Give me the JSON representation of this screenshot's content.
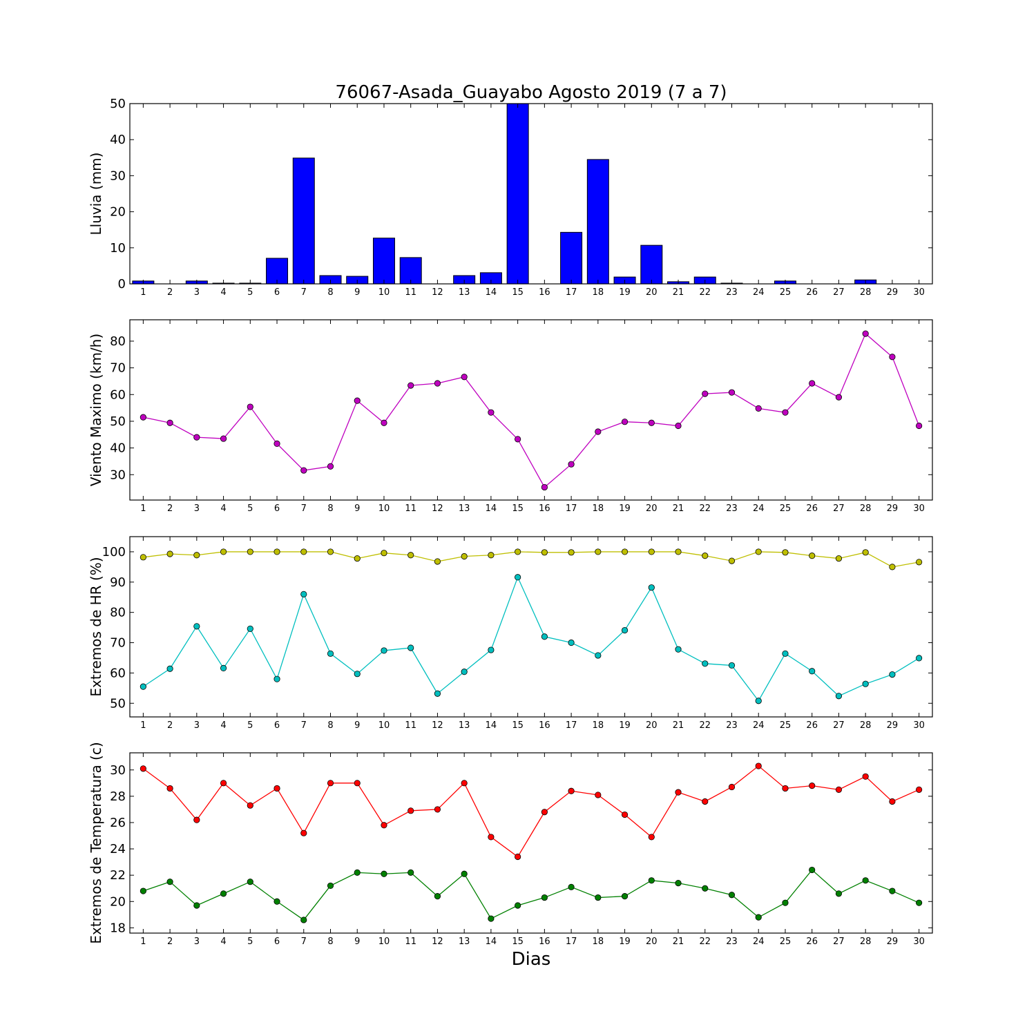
{
  "title": "76067-Asada_Guayabo Agosto 2019  (7 a 7)",
  "xlabel": "Dias",
  "chart_data": [
    {
      "type": "bar",
      "ylabel": "Lluvia (mm)",
      "x": [
        1,
        2,
        3,
        4,
        5,
        6,
        7,
        8,
        9,
        10,
        11,
        12,
        13,
        14,
        15,
        16,
        17,
        18,
        19,
        20,
        21,
        22,
        23,
        24,
        25,
        26,
        27,
        28,
        29,
        30
      ],
      "values": [
        0.8,
        0.0,
        0.8,
        0.2,
        0.2,
        7.1,
        34.9,
        2.3,
        2.1,
        12.7,
        7.3,
        0.0,
        2.3,
        3.1,
        50.0,
        0.0,
        14.3,
        34.5,
        1.9,
        10.7,
        0.6,
        1.9,
        0.2,
        0.0,
        0.8,
        0.0,
        0.0,
        1.1,
        0.0,
        0.0
      ],
      "ylim": [
        0,
        50
      ],
      "yticks": [
        0,
        10,
        20,
        30,
        40,
        50
      ],
      "color": "#0000ff"
    },
    {
      "type": "line",
      "ylabel": "Viento Maximo (km/h)",
      "x": [
        1,
        2,
        3,
        4,
        5,
        6,
        7,
        8,
        9,
        10,
        11,
        12,
        13,
        14,
        15,
        16,
        17,
        18,
        19,
        20,
        21,
        22,
        23,
        24,
        25,
        26,
        27,
        28,
        29,
        30
      ],
      "series": [
        {
          "color": "#bf00bf",
          "values": [
            51.5,
            49.4,
            44.0,
            43.5,
            55.4,
            41.6,
            31.6,
            33.1,
            57.7,
            49.4,
            63.4,
            64.2,
            66.6,
            53.3,
            43.3,
            25.3,
            33.9,
            46.1,
            49.8,
            49.4,
            48.3,
            60.3,
            60.8,
            54.8,
            53.3,
            64.2,
            59.0,
            82.8,
            74.1,
            48.3
          ]
        }
      ],
      "ylim": [
        20.5,
        88
      ],
      "yticks": [
        30,
        40,
        50,
        60,
        70,
        80
      ]
    },
    {
      "type": "line",
      "ylabel": "Extremos de HR (%)",
      "x": [
        1,
        2,
        3,
        4,
        5,
        6,
        7,
        8,
        9,
        10,
        11,
        12,
        13,
        14,
        15,
        16,
        17,
        18,
        19,
        20,
        21,
        22,
        23,
        24,
        25,
        26,
        27,
        28,
        29,
        30
      ],
      "series": [
        {
          "color": "#bfbf00",
          "values": [
            98.2,
            99.3,
            98.9,
            100.0,
            100.0,
            100.0,
            100.0,
            100.0,
            97.8,
            99.6,
            98.9,
            96.8,
            98.5,
            98.9,
            100.0,
            99.8,
            99.8,
            100.0,
            100.0,
            100.0,
            100.0,
            98.7,
            97.0,
            100.0,
            99.8,
            98.7,
            97.8,
            99.8,
            95.0,
            96.6
          ]
        },
        {
          "color": "#00bfbf",
          "values": [
            55.5,
            61.4,
            75.4,
            61.6,
            74.6,
            58.0,
            86.0,
            66.4,
            59.7,
            67.4,
            68.3,
            53.2,
            60.4,
            67.6,
            91.6,
            72.0,
            70.0,
            65.8,
            74.1,
            88.2,
            67.8,
            63.1,
            62.5,
            50.8,
            66.4,
            60.6,
            52.4,
            56.4,
            59.5,
            64.9
          ]
        }
      ],
      "ylim": [
        45.5,
        105
      ],
      "yticks": [
        50,
        60,
        70,
        80,
        90,
        100
      ]
    },
    {
      "type": "line",
      "ylabel": "Extremos de Temperatura (c)",
      "x": [
        1,
        2,
        3,
        4,
        5,
        6,
        7,
        8,
        9,
        10,
        11,
        12,
        13,
        14,
        15,
        16,
        17,
        18,
        19,
        20,
        21,
        22,
        23,
        24,
        25,
        26,
        27,
        28,
        29,
        30
      ],
      "series": [
        {
          "color": "#ff0000",
          "values": [
            30.1,
            28.6,
            26.2,
            29.0,
            27.3,
            28.6,
            25.2,
            29.0,
            29.0,
            25.8,
            26.9,
            27.0,
            29.0,
            24.9,
            23.4,
            26.8,
            28.4,
            28.1,
            26.6,
            24.9,
            28.3,
            27.6,
            28.7,
            30.3,
            28.6,
            28.8,
            28.5,
            29.5,
            27.6,
            28.5
          ]
        },
        {
          "color": "#008000",
          "values": [
            20.8,
            21.5,
            19.7,
            20.6,
            21.5,
            20.0,
            18.6,
            21.2,
            22.2,
            22.1,
            22.2,
            20.4,
            22.1,
            18.7,
            19.7,
            20.3,
            21.1,
            20.3,
            20.4,
            21.6,
            21.4,
            21.0,
            20.5,
            18.8,
            19.9,
            22.4,
            20.6,
            21.6,
            20.8,
            19.9
          ]
        }
      ],
      "ylim": [
        17.6,
        31.3
      ],
      "yticks": [
        18,
        20,
        22,
        24,
        26,
        28,
        30
      ]
    }
  ]
}
